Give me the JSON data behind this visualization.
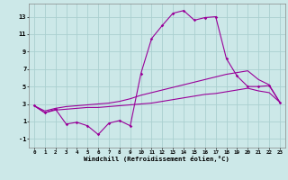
{
  "xlabel": "Windchill (Refroidissement éolien,°C)",
  "background_color": "#cce8e8",
  "grid_color": "#aad0d0",
  "line_color": "#990099",
  "ylim": [
    -2.0,
    14.5
  ],
  "xlim": [
    -0.5,
    23.5
  ],
  "yticks": [
    -1,
    1,
    3,
    5,
    7,
    9,
    11,
    13
  ],
  "xticks": [
    0,
    1,
    2,
    3,
    4,
    5,
    6,
    7,
    8,
    9,
    10,
    11,
    12,
    13,
    14,
    15,
    16,
    17,
    18,
    19,
    20,
    21,
    22,
    23
  ],
  "line1_x": [
    0,
    1,
    2,
    3,
    4,
    5,
    6,
    7,
    8,
    9,
    10,
    11,
    12,
    13,
    14,
    15,
    16,
    17,
    18,
    19,
    20,
    21,
    22,
    23
  ],
  "line1_y": [
    2.8,
    2.0,
    2.4,
    0.7,
    0.9,
    0.5,
    -0.5,
    0.8,
    1.1,
    0.5,
    6.5,
    10.5,
    12.0,
    13.4,
    13.7,
    12.6,
    12.9,
    13.0,
    8.2,
    6.2,
    5.0,
    5.0,
    5.1,
    3.2
  ],
  "line2_x": [
    0,
    1,
    2,
    3,
    4,
    5,
    6,
    7,
    8,
    9,
    10,
    11,
    12,
    13,
    14,
    15,
    16,
    17,
    18,
    19,
    20,
    21,
    22,
    23
  ],
  "line2_y": [
    2.8,
    2.2,
    2.5,
    2.7,
    2.8,
    2.9,
    3.0,
    3.1,
    3.3,
    3.6,
    4.0,
    4.3,
    4.6,
    4.9,
    5.2,
    5.5,
    5.8,
    6.1,
    6.4,
    6.6,
    6.8,
    5.8,
    5.2,
    3.2
  ],
  "line3_x": [
    0,
    1,
    2,
    3,
    4,
    5,
    6,
    7,
    8,
    9,
    10,
    11,
    12,
    13,
    14,
    15,
    16,
    17,
    18,
    19,
    20,
    21,
    22,
    23
  ],
  "line3_y": [
    2.8,
    2.0,
    2.3,
    2.4,
    2.5,
    2.6,
    2.6,
    2.7,
    2.8,
    2.9,
    3.0,
    3.1,
    3.3,
    3.5,
    3.7,
    3.9,
    4.1,
    4.2,
    4.4,
    4.6,
    4.8,
    4.5,
    4.3,
    3.2
  ]
}
